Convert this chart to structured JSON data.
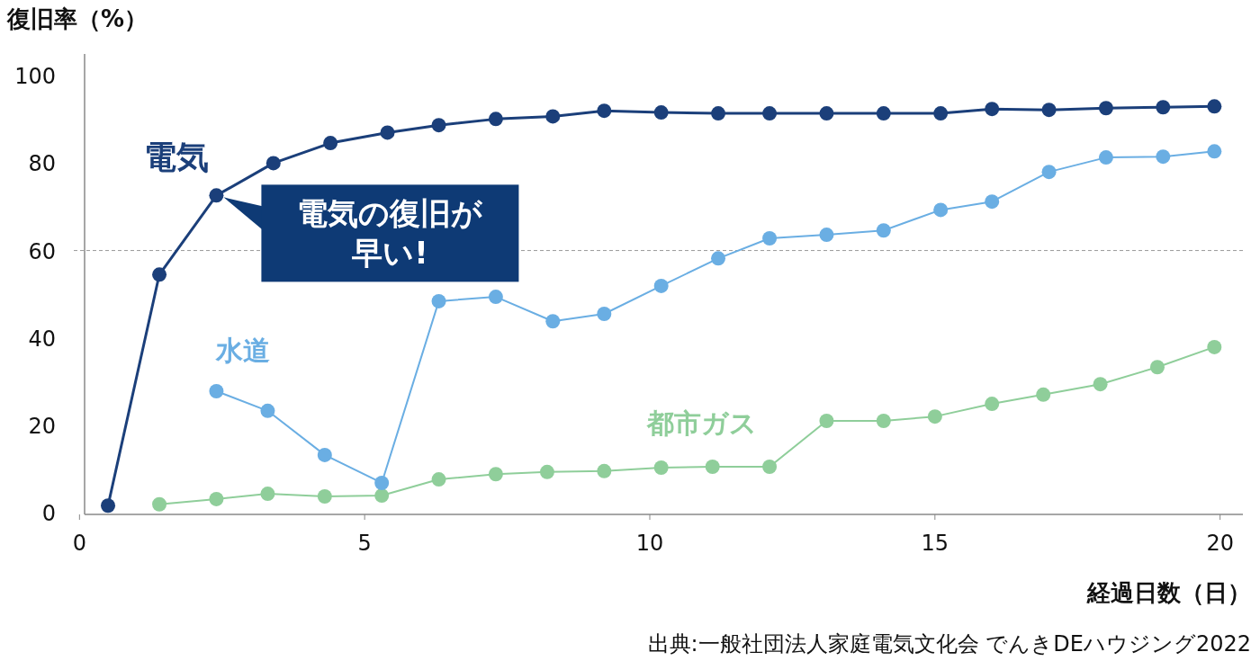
{
  "chart_data": {
    "type": "line",
    "ylabel": "復旧率（%）",
    "xlabel": "経過日数（日）",
    "xlim": [
      -0.1,
      20.4
    ],
    "ylim": [
      0,
      105
    ],
    "xticks": [
      0,
      5,
      10,
      15,
      20
    ],
    "yticks": [
      0,
      20,
      40,
      60,
      80,
      100
    ],
    "grid": false,
    "marker": "circle",
    "line_style": "solid",
    "ref_lines": [
      {
        "axis": "y",
        "value": 60,
        "color": "#999999",
        "line_style": "dashed"
      }
    ],
    "series": [
      {
        "name": "都市ガス",
        "color": "#8fce9a",
        "x": [
          1.4,
          2.4,
          3.3,
          4.3,
          5.3,
          6.3,
          7.3,
          8.2,
          9.2,
          10.2,
          11.1,
          12.1,
          13.1,
          14.1,
          15.0,
          16.0,
          16.9,
          17.9,
          18.9,
          19.9
        ],
        "values": [
          1.9,
          3.1,
          4.3,
          3.7,
          3.9,
          7.6,
          8.8,
          9.3,
          9.5,
          10.3,
          10.5,
          10.5,
          21.0,
          21.0,
          22.0,
          24.9,
          27.0,
          29.4,
          33.3,
          37.9
        ]
      },
      {
        "name": "水道",
        "color": "#6aaee3",
        "x": [
          2.4,
          3.3,
          4.3,
          5.3,
          6.3,
          7.3,
          8.3,
          9.2,
          10.2,
          11.2,
          12.1,
          13.1,
          14.1,
          15.1,
          16.0,
          17.0,
          18.0,
          19.0,
          19.9
        ],
        "values": [
          27.8,
          23.3,
          13.2,
          6.8,
          48.4,
          49.4,
          43.8,
          45.5,
          51.9,
          58.2,
          62.8,
          63.6,
          64.6,
          69.3,
          71.2,
          78.0,
          81.3,
          81.5,
          82.7
        ]
      },
      {
        "name": "電気",
        "color": "#1b3f7a",
        "x": [
          0.5,
          1.4,
          2.4,
          3.4,
          4.4,
          5.4,
          6.3,
          7.3,
          8.3,
          9.2,
          10.2,
          11.2,
          12.1,
          13.1,
          14.1,
          15.1,
          16.0,
          17.0,
          18.0,
          19.0,
          19.9
        ],
        "values": [
          1.6,
          54.5,
          72.6,
          80.0,
          84.6,
          87.0,
          88.7,
          90.1,
          90.7,
          92.0,
          91.6,
          91.4,
          91.4,
          91.4,
          91.4,
          91.4,
          92.4,
          92.2,
          92.6,
          92.8,
          93.0
        ]
      }
    ],
    "annotations": [
      {
        "text": "電気の復旧が早い!",
        "x": 2.4,
        "y": 72.6
      },
      "出典:一般社団法人家庭電気文化会 でんきDEハウジング2022"
    ]
  }
}
